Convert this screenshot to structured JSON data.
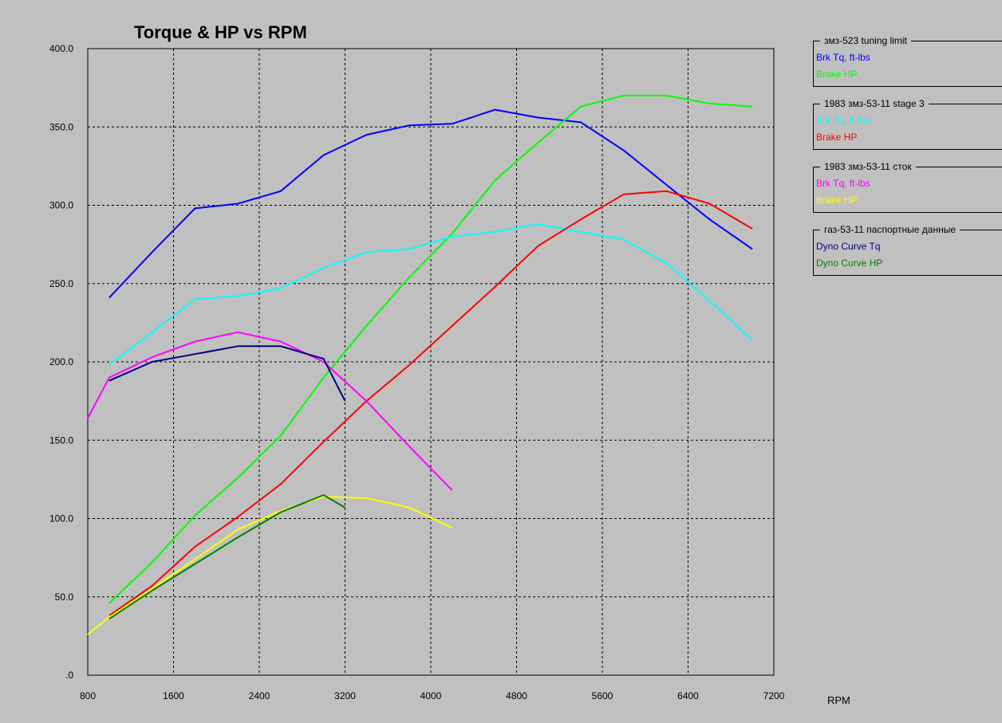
{
  "chart_data": {
    "type": "line",
    "title": "Torque & HP vs RPM",
    "xlabel": "RPM",
    "ylabel": "",
    "xlim": [
      800,
      7200
    ],
    "ylim": [
      0,
      400
    ],
    "x_ticks": [
      "800",
      "1600",
      "2400",
      "3200",
      "4000",
      "4800",
      "5600",
      "6400",
      "7200"
    ],
    "y_ticks": [
      ".0",
      "50.0",
      "100.0",
      "150.0",
      "200.0",
      "250.0",
      "300.0",
      "350.0",
      "400.0"
    ],
    "grid": true,
    "legend_position": "right",
    "groups": [
      {
        "title": "змз-523 tuning limit",
        "series": [
          {
            "name": "Brk Tq, ft-lbs",
            "color": "#0000ff",
            "x": [
              1000,
              1400,
              1800,
              2200,
              2600,
              3000,
              3400,
              3800,
              4200,
              4600,
              5000,
              5400,
              5800,
              6200,
              6600,
              7000
            ],
            "y": [
              241,
              270,
              298,
              301,
              309,
              332,
              345,
              351,
              352,
              361,
              356,
              353,
              335,
              313,
              291,
              272
            ]
          },
          {
            "name": "Brake HP",
            "color": "#00ff00",
            "x": [
              1000,
              1400,
              1800,
              2200,
              2600,
              3000,
              3400,
              3800,
              4200,
              4600,
              5000,
              5400,
              5800,
              6200,
              6600,
              7000
            ],
            "y": [
              46,
              72,
              102,
              126,
              153,
              190,
              223,
              254,
              282,
              316,
              340,
              363,
              370,
              370,
              365,
              363
            ]
          }
        ]
      },
      {
        "title": "1983 змз-53-11 stage 3",
        "series": [
          {
            "name": "Brk Tq, ft-lbs",
            "color": "#00ffff",
            "x": [
              1000,
              1400,
              1800,
              2200,
              2600,
              3000,
              3400,
              3800,
              4200,
              4600,
              5000,
              5400,
              5800,
              6200,
              6600,
              7000
            ],
            "y": [
              198,
              219,
              240,
              242,
              247,
              260,
              270,
              272,
              280,
              283,
              288,
              283,
              278,
              263,
              239,
              214
            ]
          },
          {
            "name": "Brake HP",
            "color": "#ff0000",
            "x": [
              1000,
              1400,
              1800,
              2200,
              2600,
              3000,
              3400,
              3800,
              4200,
              4600,
              5000,
              5400,
              5800,
              6200,
              6600,
              7000
            ],
            "y": [
              38,
              57,
              82,
              101,
              122,
              149,
              175,
              198,
              223,
              248,
              274,
              291,
              307,
              309,
              301,
              285
            ]
          }
        ]
      },
      {
        "title": "1983 змз-53-11 сток",
        "series": [
          {
            "name": "Brk Tq, ft-lbs",
            "color": "#ff00ff",
            "x": [
              800,
              1000,
              1400,
              1800,
              2200,
              2600,
              3000,
              3400,
              3800,
              4200
            ],
            "y": [
              164,
              190,
              203,
              213,
              219,
              213,
              200,
              175,
              146,
              118
            ]
          },
          {
            "name": "Brake HP",
            "color": "#ffff00",
            "x": [
              800,
              1000,
              1400,
              1800,
              2200,
              2600,
              3000,
              3400,
              3800,
              4200
            ],
            "y": [
              26,
              37,
              55,
              74,
              93,
              105,
              114,
              113,
              107,
              94
            ]
          }
        ]
      },
      {
        "title": "газ-53-11 паспортные данные",
        "series": [
          {
            "name": "Dyno Curve Tq",
            "color": "#000080",
            "x": [
              1000,
              1400,
              1800,
              2200,
              2600,
              3000,
              3200
            ],
            "y": [
              188,
              200,
              205,
              210,
              210,
              202,
              175
            ]
          },
          {
            "name": "Dyno Curve HP",
            "color": "#008000",
            "x": [
              1000,
              1400,
              1800,
              2200,
              2600,
              3000,
              3200
            ],
            "y": [
              36,
              54,
              71,
              88,
              104,
              115,
              107
            ]
          }
        ]
      }
    ]
  }
}
